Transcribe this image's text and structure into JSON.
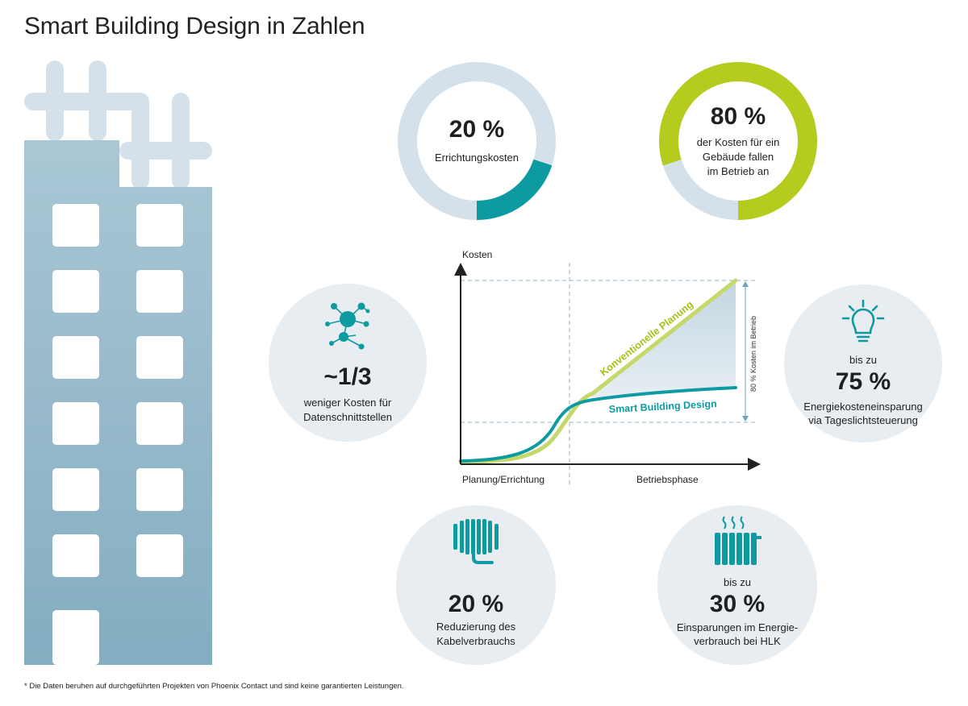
{
  "title": "Smart Building Design in Zahlen",
  "colors": {
    "teal": "#0e9aa1",
    "green": "#b5cc1e",
    "ring_bg": "#d5e1ea",
    "circle_bg": "#e8edf1",
    "building": "#90b6c8",
    "building_light": "#d4e1ea"
  },
  "stats": {
    "errichtung": {
      "value": "20 %",
      "label": "Errichtungskosten",
      "fraction": 0.2
    },
    "betrieb": {
      "value": "80 %",
      "lines": [
        "der Kosten für ein",
        "Gebäude fallen",
        "im Betrieb an"
      ],
      "fraction": 0.8
    },
    "daten": {
      "icon": "network-icon",
      "value": "~1/3",
      "lines": [
        "weniger Kosten für",
        "Datenschnittstellen"
      ]
    },
    "licht": {
      "icon": "light-bulb-icon",
      "pre": "bis zu",
      "value": "75 %",
      "lines": [
        "Energiekosteneinsparung",
        "via Tageslichtsteuerung"
      ]
    },
    "kabel": {
      "icon": "cable-reel-icon",
      "value": "20 %",
      "lines": [
        "Reduzierung des",
        "Kabelverbrauchs"
      ]
    },
    "hlk": {
      "icon": "radiator-icon",
      "pre": "bis zu",
      "value": "30 %",
      "lines": [
        "Einsparungen im Energie-",
        "verbrauch bei HLK"
      ]
    }
  },
  "chart_data": {
    "type": "line",
    "ylabel": "Kosten",
    "phases": [
      "Planung/Errichtung",
      "Betriebsphase"
    ],
    "series": [
      {
        "name": "Konventionelle Planung",
        "color": "#b5cc1e"
      },
      {
        "name": "Smart Building Design",
        "color": "#0e9aa1"
      }
    ],
    "annotation": "80 % Kosten im Betrieb"
  },
  "footnote": "* Die Daten beruhen auf durchgeführten Projekten von Phoenix Contact und sind keine garantierten Leistungen."
}
